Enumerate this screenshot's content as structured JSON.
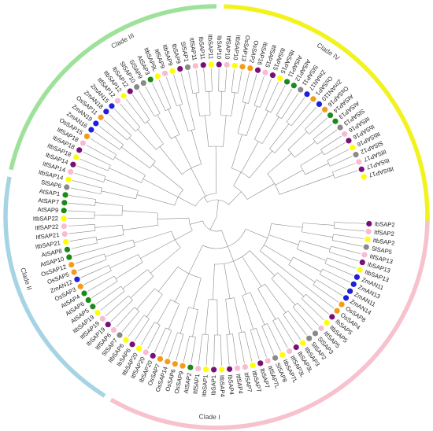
{
  "clades": [
    {
      "name": "Clade I",
      "color": "#f7c2cd"
    },
    {
      "name": "Clade II",
      "color": "#a6d4e4"
    },
    {
      "name": "Clade III",
      "color": "#9ee19a"
    },
    {
      "name": "Clade IV",
      "color": "#f2f21f"
    }
  ],
  "species_colors": {
    "Ib": "#7a0f7a",
    "Itf": "#f7bcd2",
    "Itb": "#ffff00",
    "Sl": "#8a8a8a",
    "Zm": "#1f1fdc",
    "Os": "#f29c1b",
    "At": "#1b8a1b"
  },
  "leaves": [
    {
      "label": "IbSAP2",
      "sp": "Ib"
    },
    {
      "label": "ItfSAP2",
      "sp": "Itf"
    },
    {
      "label": "ItbSAP2",
      "sp": "Itb"
    },
    {
      "label": "SlSAP5",
      "sp": "Sl"
    },
    {
      "label": "ItfSAP13",
      "sp": "Itf"
    },
    {
      "label": "IbSAP13",
      "sp": "Ib"
    },
    {
      "label": "ItbSAP13",
      "sp": "Itb"
    },
    {
      "label": "ZmAN11",
      "sp": "Zm"
    },
    {
      "label": "ZmAN13",
      "sp": "Zm"
    },
    {
      "label": "ZmAN11",
      "sp": "Zm"
    },
    {
      "label": "ZmAN14",
      "sp": "Zm"
    },
    {
      "label": "OsSAP8",
      "sp": "Os"
    },
    {
      "label": "OsSAP4",
      "sp": "Os"
    },
    {
      "label": "IbSAP5",
      "sp": "Ib"
    },
    {
      "label": "ItbSAP5",
      "sp": "Itb"
    },
    {
      "label": "ItfSAP5",
      "sp": "Itf"
    },
    {
      "label": "SlSAP3",
      "sp": "Sl"
    },
    {
      "label": "SlSAP2",
      "sp": "Sl"
    },
    {
      "label": "ItbSAP3",
      "sp": "Itb"
    },
    {
      "label": "IbSAP3L",
      "sp": "Ib"
    },
    {
      "label": "ItfSAP3L",
      "sp": "Itf"
    },
    {
      "label": "ItbSAP7L",
      "sp": "Itb"
    },
    {
      "label": "SlSAP8",
      "sp": "Sl"
    },
    {
      "label": "ItfSAP7L",
      "sp": "Itf"
    },
    {
      "label": "IbSAP7",
      "sp": "Ib"
    },
    {
      "label": "ItbSAP7",
      "sp": "Itb"
    },
    {
      "label": "ItfSAP7",
      "sp": "Itf"
    },
    {
      "label": "ItfSAP4",
      "sp": "Itf"
    },
    {
      "label": "IbSAP4",
      "sp": "Ib"
    },
    {
      "label": "ItbSAP4",
      "sp": "Itb"
    },
    {
      "label": "IbSAP1",
      "sp": "Ib"
    },
    {
      "label": "ItbSAP1",
      "sp": "Itb"
    },
    {
      "label": "ItfSAP1",
      "sp": "Itf"
    },
    {
      "label": "AtSAP2",
      "sp": "At"
    },
    {
      "label": "OsSAP9",
      "sp": "Os"
    },
    {
      "label": "OsSAP6",
      "sp": "Os"
    },
    {
      "label": "OsSAP14",
      "sp": "Os"
    },
    {
      "label": "OsSAP7",
      "sp": "Os"
    },
    {
      "label": "IbSAP20",
      "sp": "Ib"
    },
    {
      "label": "ItfSAP20",
      "sp": "Itf"
    },
    {
      "label": "ItbSAP20",
      "sp": "Itb"
    },
    {
      "label": "IbSAP6",
      "sp": "Ib"
    },
    {
      "label": "ItbSAP6",
      "sp": "Itb"
    },
    {
      "label": "SlSAP7",
      "sp": "Sl"
    },
    {
      "label": "ItfSAP6",
      "sp": "Itf"
    },
    {
      "label": "IbSAP19",
      "sp": "Ib"
    },
    {
      "label": "ItfSAP19",
      "sp": "Itf"
    },
    {
      "label": "ItbSAP19",
      "sp": "Itb"
    },
    {
      "label": "AtSAP5",
      "sp": "At"
    },
    {
      "label": "AtSAP6",
      "sp": "At"
    },
    {
      "label": "AtSAP4",
      "sp": "At"
    },
    {
      "label": "OsSAP3",
      "sp": "Os"
    },
    {
      "label": "ZmAN12",
      "sp": "Zm"
    },
    {
      "label": "OsSAP5",
      "sp": "Os"
    },
    {
      "label": "OsSAP12",
      "sp": "Os"
    },
    {
      "label": "AtSAP10",
      "sp": "At"
    },
    {
      "label": "AtSAP8",
      "sp": "At"
    },
    {
      "label": "ItbSAP21",
      "sp": "Itb"
    },
    {
      "label": "ItfSAP21",
      "sp": "Itf"
    },
    {
      "label": "ItfSAP22",
      "sp": "Itf"
    },
    {
      "label": "ItbSAP22",
      "sp": "Itb"
    },
    {
      "label": "AtSAP9",
      "sp": "At"
    },
    {
      "label": "AtSAP7",
      "sp": "At"
    },
    {
      "label": "AtSAP1",
      "sp": "At"
    },
    {
      "label": "SlSAP6",
      "sp": "Sl"
    },
    {
      "label": "ItbSAP14",
      "sp": "Itb"
    },
    {
      "label": "ItfSAP14",
      "sp": "Itf"
    },
    {
      "label": "IbSAP14",
      "sp": "Ib"
    },
    {
      "label": "ItbSAP18",
      "sp": "Itb"
    },
    {
      "label": "IbSAP18",
      "sp": "Ib"
    },
    {
      "label": "ItfSAP18",
      "sp": "Itf"
    },
    {
      "label": "OsSAP15",
      "sp": "Os"
    },
    {
      "label": "ZmAN16",
      "sp": "Zm"
    },
    {
      "label": "ZmAN19",
      "sp": "Zm"
    },
    {
      "label": "OsSAP11",
      "sp": "Os"
    },
    {
      "label": "ZmAN18",
      "sp": "Zm"
    },
    {
      "label": "ZmAN15",
      "sp": "Zm"
    },
    {
      "label": "ItfSAP12",
      "sp": "Itf"
    },
    {
      "label": "ItbSAP12",
      "sp": "Itb"
    },
    {
      "label": "IbSAP12",
      "sp": "Ib"
    },
    {
      "label": "SlSAP10",
      "sp": "Sl"
    },
    {
      "label": "SlSAP9",
      "sp": "Sl"
    },
    {
      "label": "AtSAP3",
      "sp": "At"
    },
    {
      "label": "ItbSAP9L",
      "sp": "Itb"
    },
    {
      "label": "ItfSAP9",
      "sp": "Itf"
    },
    {
      "label": "ItbSAP9",
      "sp": "Itb"
    },
    {
      "label": "IbSAP9",
      "sp": "Ib"
    },
    {
      "label": "SlSAP1",
      "sp": "Sl"
    },
    {
      "label": "ItfSAP11",
      "sp": "Itf"
    },
    {
      "label": "IbSAP11",
      "sp": "Ib"
    },
    {
      "label": "ItbSAP11",
      "sp": "Itb"
    },
    {
      "label": "IbSAP10",
      "sp": "Ib"
    },
    {
      "label": "ItfSAP10",
      "sp": "Itf"
    },
    {
      "label": "ItbSAP10",
      "sp": "Itb"
    },
    {
      "label": "OsSAP13",
      "sp": "Os"
    },
    {
      "label": "OsSAP2",
      "sp": "Os"
    },
    {
      "label": "IbSAP16",
      "sp": "Ib"
    },
    {
      "label": "ItfSAP15",
      "sp": "Itf"
    },
    {
      "label": "IbSAP15",
      "sp": "Ib"
    },
    {
      "label": "ItbSAP15",
      "sp": "Itb"
    },
    {
      "label": "AtSAP11",
      "sp": "At"
    },
    {
      "label": "AtSAP12",
      "sp": "At"
    },
    {
      "label": "SlSAP11",
      "sp": "Sl"
    },
    {
      "label": "ZmAN17",
      "sp": "Zm"
    },
    {
      "label": "OsSAP1",
      "sp": "Os"
    },
    {
      "label": "ZmAN110",
      "sp": "Zm"
    },
    {
      "label": "OsSAP16",
      "sp": "Os"
    },
    {
      "label": "AtSAP14",
      "sp": "At"
    },
    {
      "label": "AtSAP13",
      "sp": "At"
    },
    {
      "label": "SlSAP13",
      "sp": "Sl"
    },
    {
      "label": "ItfSAP16",
      "sp": "Itf"
    },
    {
      "label": "IbSAP16",
      "sp": "Ib"
    },
    {
      "label": "ItbSAP16",
      "sp": "Itb"
    },
    {
      "label": "SlSAP12",
      "sp": "Sl"
    },
    {
      "label": "ItfSAP17",
      "sp": "Itf"
    },
    {
      "label": "IbSAP17",
      "sp": "Ib"
    },
    {
      "label": "ItbSAP17",
      "sp": "Itb"
    }
  ]
}
